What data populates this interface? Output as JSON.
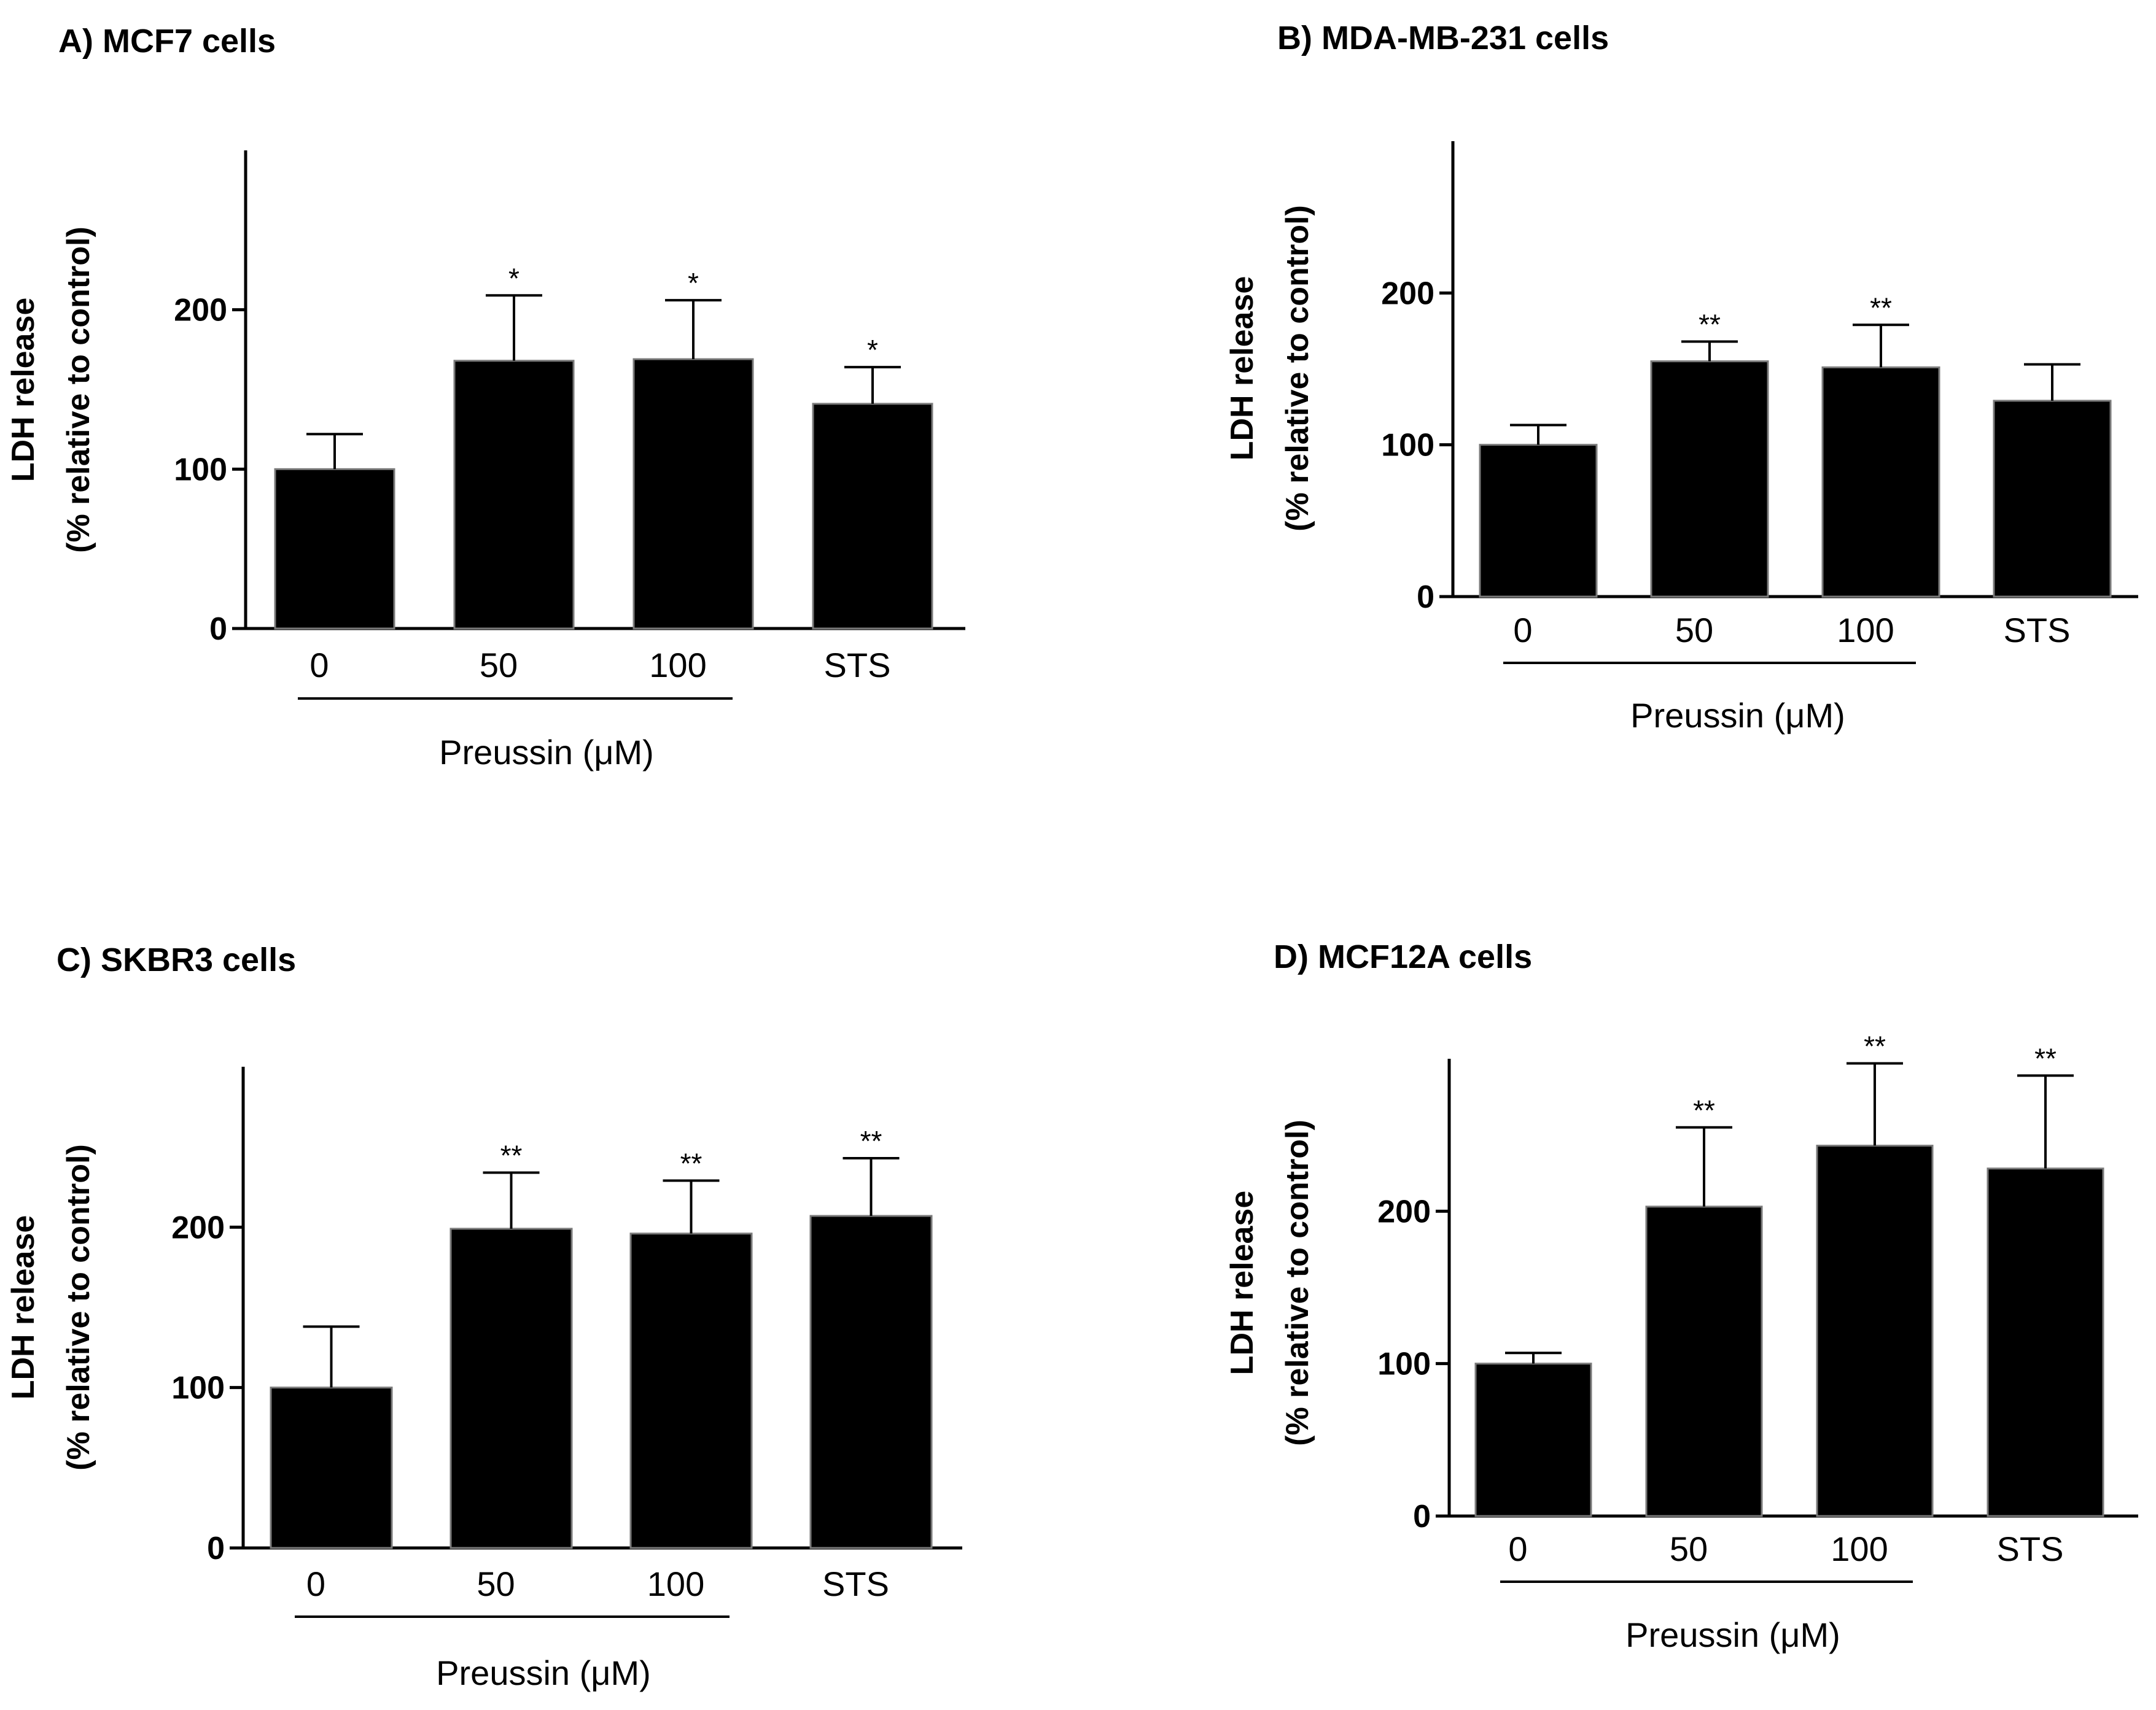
{
  "chart_data": [
    {
      "type": "bar",
      "title": "A) MCF7 cells",
      "ylabel_line1": "LDH release",
      "ylabel_line2": "(% relative to control)",
      "xlabel": "Preussin (μM)",
      "categories": [
        "0",
        "50",
        "100",
        "STS"
      ],
      "values": [
        100,
        168,
        169,
        141
      ],
      "errors": [
        22,
        41,
        37,
        23
      ],
      "significance": [
        "",
        "*",
        "*",
        "*"
      ],
      "yticks": [
        0,
        100,
        200
      ],
      "ylim": [
        0,
        300
      ],
      "bar_color": "#000000"
    },
    {
      "type": "bar",
      "title": "B) MDA-MB-231 cells",
      "ylabel_line1": "LDH release",
      "ylabel_line2": "(% relative to control)",
      "xlabel": "Preussin (μM)",
      "categories": [
        "0",
        "50",
        "100",
        "STS"
      ],
      "values": [
        100,
        155,
        151,
        129
      ],
      "errors": [
        13,
        13,
        28,
        24
      ],
      "significance": [
        "",
        "**",
        "**",
        ""
      ],
      "yticks": [
        0,
        100,
        200
      ],
      "ylim": [
        0,
        300
      ],
      "bar_color": "#000000"
    },
    {
      "type": "bar",
      "title": "C) SKBR3 cells",
      "ylabel_line1": "LDH release",
      "ylabel_line2": "(% relative to control)",
      "xlabel": "Preussin (μM)",
      "categories": [
        "0",
        "50",
        "100",
        "STS"
      ],
      "values": [
        100,
        199,
        196,
        207
      ],
      "errors": [
        38,
        35,
        33,
        36
      ],
      "significance": [
        "",
        "**",
        "**",
        "**"
      ],
      "yticks": [
        0,
        100,
        200
      ],
      "ylim": [
        0,
        300
      ],
      "bar_color": "#000000"
    },
    {
      "type": "bar",
      "title": "D) MCF12A cells",
      "ylabel_line1": "LDH release",
      "ylabel_line2": "(% relative to control)",
      "xlabel": "Preussin (μM)",
      "categories": [
        "0",
        "50",
        "100",
        "STS"
      ],
      "values": [
        100,
        203,
        243,
        228
      ],
      "errors": [
        7,
        52,
        54,
        61
      ],
      "significance": [
        "",
        "**",
        "**",
        "**"
      ],
      "yticks": [
        0,
        100,
        200
      ],
      "ylim": [
        0,
        300
      ],
      "bar_color": "#000000"
    }
  ]
}
